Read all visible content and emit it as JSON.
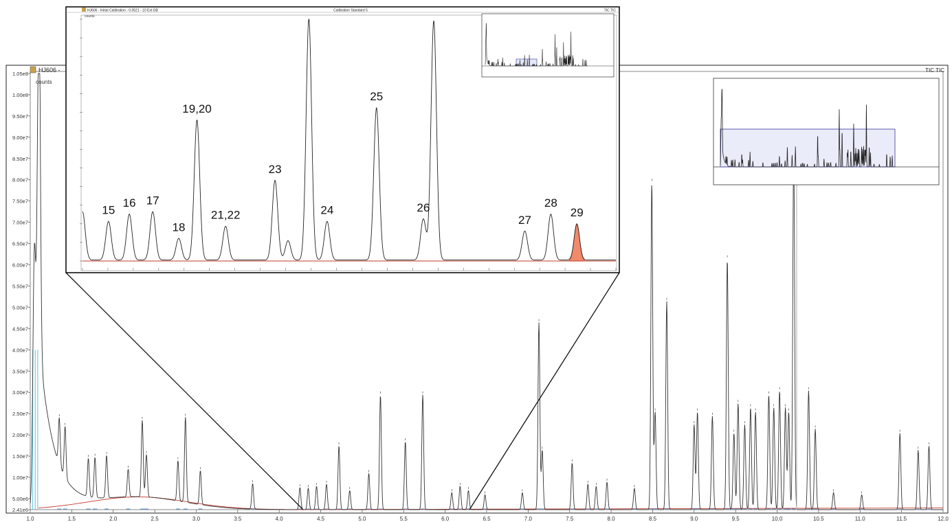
{
  "main": {
    "window_title": "HJ606 -",
    "unit_label": "counts",
    "right_title": "TIC TIC",
    "x_ticks": [
      "1.0",
      "1.5",
      "2.0",
      "2.5",
      "3.0",
      "3.5",
      "4.0",
      "4.5",
      "5.0",
      "5.5",
      "6.0",
      "6.5",
      "7.0",
      "7.5",
      "8.0",
      "8.5",
      "9.0",
      "9.5",
      "10.0",
      "10.5",
      "11.0",
      "11.5",
      "12.0"
    ],
    "y_ticks": [
      "2.41e6",
      "5.00e6",
      "1.00e7",
      "1.50e7",
      "2.00e7",
      "2.50e7",
      "3.00e7",
      "3.50e7",
      "4.00e7",
      "4.50e7",
      "5.00e7",
      "5.50e7",
      "6.00e7",
      "6.50e7",
      "7.00e7",
      "7.50e7",
      "8.00e7",
      "8.50e7",
      "9.00e7",
      "9.50e7",
      "1.00e8",
      "1.05e8"
    ]
  },
  "inset": {
    "title_left": "HJ606 - Initial Calibration - 0.0521 - 10 Ext.GB",
    "title_center": "Calibration Standard 5",
    "title_right": "TIC TIC",
    "unit_label": "counts",
    "peak_labels": [
      "15",
      "16",
      "17",
      "18",
      "19,20",
      "21,22",
      "23",
      "24",
      "25",
      "26",
      "27",
      "28",
      "29"
    ],
    "highlight_color": "#f08a6a"
  },
  "chart_data": [
    {
      "type": "line",
      "title": "",
      "xlabel": "",
      "ylabel": "counts",
      "xlim": [
        1.0,
        12.0
      ],
      "ylim": [
        2410000,
        105000000
      ],
      "grid": false,
      "series": [
        {
          "peaks": [
            {
              "rt": 1.05,
              "height": 60000000
            },
            {
              "rt": 1.1,
              "height": 105000000
            },
            {
              "rt": 1.35,
              "height": 11000000
            },
            {
              "rt": 1.42,
              "height": 12000000
            },
            {
              "rt": 1.7,
              "height": 9000000
            },
            {
              "rt": 1.78,
              "height": 9500000
            },
            {
              "rt": 1.92,
              "height": 10000000
            },
            {
              "rt": 2.18,
              "height": 6500000
            },
            {
              "rt": 2.35,
              "height": 18000000
            },
            {
              "rt": 2.4,
              "height": 10000000
            },
            {
              "rt": 2.78,
              "height": 9500000
            },
            {
              "rt": 2.87,
              "height": 20000000
            },
            {
              "rt": 3.05,
              "height": 8000000
            },
            {
              "rt": 3.68,
              "height": 6000000
            },
            {
              "rt": 4.25,
              "height": 5200000
            },
            {
              "rt": 4.35,
              "height": 5000000
            },
            {
              "rt": 4.45,
              "height": 5500000
            },
            {
              "rt": 4.57,
              "height": 6000000
            },
            {
              "rt": 4.72,
              "height": 15000000
            },
            {
              "rt": 4.85,
              "height": 4500000
            },
            {
              "rt": 5.08,
              "height": 8500000
            },
            {
              "rt": 5.22,
              "height": 27000000
            },
            {
              "rt": 5.52,
              "height": 16000000
            },
            {
              "rt": 5.73,
              "height": 27000000
            },
            {
              "rt": 6.08,
              "height": 4000000
            },
            {
              "rt": 6.18,
              "height": 5500000
            },
            {
              "rt": 6.28,
              "height": 4500000
            },
            {
              "rt": 6.48,
              "height": 3500000
            },
            {
              "rt": 6.93,
              "height": 4000000
            },
            {
              "rt": 7.13,
              "height": 44000000
            },
            {
              "rt": 7.17,
              "height": 14000000
            },
            {
              "rt": 7.53,
              "height": 11000000
            },
            {
              "rt": 7.72,
              "height": 6000000
            },
            {
              "rt": 7.82,
              "height": 5500000
            },
            {
              "rt": 7.95,
              "height": 6500000
            },
            {
              "rt": 8.28,
              "height": 5000000
            },
            {
              "rt": 8.49,
              "height": 77000000
            },
            {
              "rt": 8.53,
              "height": 23000000
            },
            {
              "rt": 8.67,
              "height": 49000000
            },
            {
              "rt": 9.0,
              "height": 20000000
            },
            {
              "rt": 9.04,
              "height": 23000000
            },
            {
              "rt": 9.22,
              "height": 22000000
            },
            {
              "rt": 9.4,
              "height": 59000000
            },
            {
              "rt": 9.48,
              "height": 18000000
            },
            {
              "rt": 9.53,
              "height": 25000000
            },
            {
              "rt": 9.61,
              "height": 20000000
            },
            {
              "rt": 9.68,
              "height": 24000000
            },
            {
              "rt": 9.74,
              "height": 23000000
            },
            {
              "rt": 9.9,
              "height": 27000000
            },
            {
              "rt": 9.96,
              "height": 24000000
            },
            {
              "rt": 10.03,
              "height": 28000000
            },
            {
              "rt": 10.1,
              "height": 24000000
            },
            {
              "rt": 10.14,
              "height": 23000000
            },
            {
              "rt": 10.2,
              "height": 85000000
            },
            {
              "rt": 10.38,
              "height": 28000000
            },
            {
              "rt": 10.46,
              "height": 19000000
            },
            {
              "rt": 10.68,
              "height": 4000000
            },
            {
              "rt": 11.02,
              "height": 3500000
            },
            {
              "rt": 11.48,
              "height": 18000000
            },
            {
              "rt": 11.7,
              "height": 14000000
            },
            {
              "rt": 11.83,
              "height": 15000000
            }
          ]
        }
      ]
    },
    {
      "type": "line",
      "title": "",
      "xlabel": "",
      "ylabel": "counts",
      "xlim": [
        4.25,
        6.3
      ],
      "ylim": [
        0,
        1
      ],
      "grid": false,
      "series": [
        {
          "peaks": [
            {
              "rt": 4.25,
              "height": 0.2,
              "label": ""
            },
            {
              "rt": 4.35,
              "height": 0.16,
              "label": "15"
            },
            {
              "rt": 4.43,
              "height": 0.19,
              "label": "16"
            },
            {
              "rt": 4.52,
              "height": 0.2,
              "label": "17"
            },
            {
              "rt": 4.62,
              "height": 0.09,
              "label": "18"
            },
            {
              "rt": 4.69,
              "height": 0.58,
              "label": "19,20"
            },
            {
              "rt": 4.8,
              "height": 0.14,
              "label": "21,22"
            },
            {
              "rt": 4.99,
              "height": 0.33,
              "label": "23"
            },
            {
              "rt": 5.04,
              "height": 0.08,
              "label": ""
            },
            {
              "rt": 5.12,
              "height": 1.0,
              "label": ""
            },
            {
              "rt": 5.19,
              "height": 0.16,
              "label": "24"
            },
            {
              "rt": 5.38,
              "height": 0.63,
              "label": "25"
            },
            {
              "rt": 5.56,
              "height": 0.17,
              "label": "26"
            },
            {
              "rt": 5.6,
              "height": 0.99,
              "label": ""
            },
            {
              "rt": 5.95,
              "height": 0.12,
              "label": "27"
            },
            {
              "rt": 6.05,
              "height": 0.19,
              "label": "28"
            },
            {
              "rt": 6.15,
              "height": 0.15,
              "label": "29"
            }
          ]
        }
      ]
    }
  ]
}
